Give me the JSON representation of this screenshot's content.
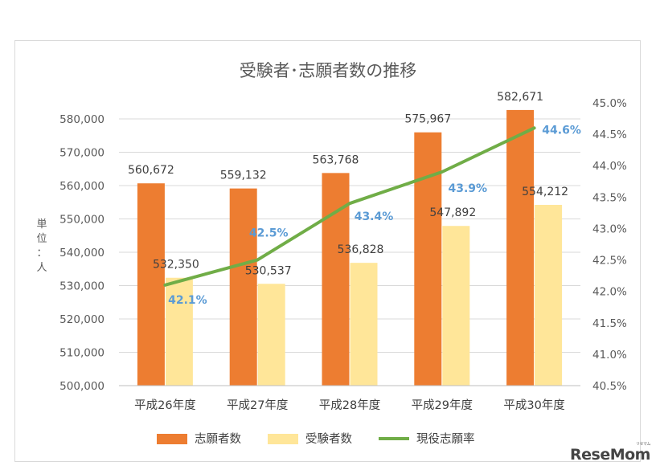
{
  "chart_data": {
    "type": "bar",
    "title": "受験者･志願者数の推移",
    "ylabel_left": "単位：人",
    "categories": [
      "平成26年度",
      "平成27年度",
      "平成28年度",
      "平成29年度",
      "平成30年度"
    ],
    "series": [
      {
        "name": "志願者数",
        "kind": "bar",
        "color": "#ed7d31",
        "axis": "left",
        "values": [
          560672,
          559132,
          563768,
          575967,
          582671
        ],
        "labels": [
          "560,672",
          "559,132",
          "563,768",
          "575,967",
          "582,671"
        ]
      },
      {
        "name": "受験者数",
        "kind": "bar",
        "color": "#ffe699",
        "axis": "left",
        "values": [
          532350,
          530537,
          536828,
          547892,
          554212
        ],
        "labels": [
          "532,350",
          "530,537",
          "536,828",
          "547,892",
          "554,212"
        ]
      },
      {
        "name": "現役志願率",
        "kind": "line",
        "color": "#70ad47",
        "axis": "right",
        "values": [
          42.1,
          42.5,
          43.4,
          43.9,
          44.6
        ],
        "labels": [
          "42.1%",
          "42.5%",
          "43.4%",
          "43.9%",
          "44.6%"
        ],
        "label_color": "#5b9bd5"
      }
    ],
    "ylim_left": [
      500000,
      580000
    ],
    "yticks_left": [
      "500,000",
      "510,000",
      "520,000",
      "530,000",
      "540,000",
      "550,000",
      "560,000",
      "570,000",
      "580,000"
    ],
    "ylim_right": [
      40.5,
      45.0
    ],
    "yticks_right": [
      "40.5%",
      "41.0%",
      "41.5%",
      "42.0%",
      "42.5%",
      "43.0%",
      "43.5%",
      "44.0%",
      "44.5%",
      "45.0%"
    ],
    "grid": true,
    "legend": "bottom"
  },
  "watermark": {
    "text": "ReseMom",
    "small": "リセマム"
  }
}
